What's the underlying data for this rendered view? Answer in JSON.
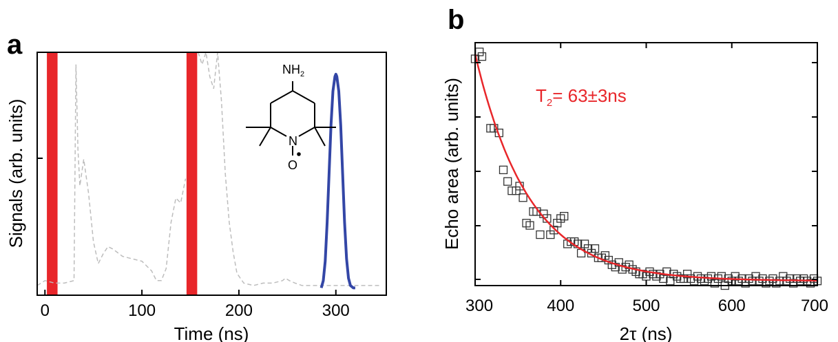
{
  "panels": {
    "a": {
      "letter": "a"
    },
    "b": {
      "letter": "b"
    }
  },
  "colors": {
    "pulse": "#e8262a",
    "echo": "#3346a6",
    "trace": "#bdbdbd",
    "fit": "#e8262a",
    "marker": "#333333"
  },
  "chart_data": [
    {
      "panel": "a",
      "type": "line",
      "title": "",
      "xlabel": "Time (ns)",
      "ylabel": "Signals (arb. units)",
      "xlim": [
        -8,
        352
      ],
      "ylim": [
        0,
        1
      ],
      "xticks": [
        0,
        100,
        200,
        300
      ],
      "xtick_labels": [
        "0",
        "100",
        "200",
        "300"
      ],
      "pulses": [
        {
          "start": 2,
          "end": 13
        },
        {
          "start": 146,
          "end": 157
        }
      ],
      "series": [
        {
          "style": "dashed-trace",
          "x": [
            -8,
            0,
            10,
            20,
            30,
            32,
            34,
            36,
            40,
            45,
            50,
            55,
            60,
            65,
            70,
            80,
            90,
            100,
            105,
            110,
            115,
            120,
            125,
            130,
            135,
            140,
            145
          ],
          "y": [
            0.04,
            0.06,
            0.05,
            0.05,
            0.06,
            0.95,
            0.6,
            0.45,
            0.56,
            0.42,
            0.22,
            0.13,
            0.17,
            0.2,
            0.19,
            0.16,
            0.15,
            0.14,
            0.12,
            0.1,
            0.06,
            0.06,
            0.11,
            0.3,
            0.4,
            0.38,
            0.48
          ]
        },
        {
          "style": "dashed-trace",
          "x": [
            158,
            162,
            166,
            170,
            174,
            178,
            182,
            186,
            190,
            194,
            198,
            205,
            215,
            225,
            235,
            245,
            248,
            252,
            258,
            265,
            275,
            285,
            295,
            305,
            315,
            330,
            345
          ],
          "y": [
            1.0,
            0.95,
            1.0,
            0.9,
            0.85,
            1.0,
            0.8,
            0.5,
            0.3,
            0.18,
            0.09,
            0.05,
            0.04,
            0.05,
            0.05,
            0.06,
            0.07,
            0.06,
            0.05,
            0.04,
            0.04,
            0.04,
            0.04,
            0.04,
            0.04,
            0.04,
            0.04
          ]
        },
        {
          "style": "echo",
          "x": [
            285,
            287,
            289,
            291,
            293,
            295,
            297,
            299,
            300,
            301,
            303,
            305,
            307,
            309,
            311,
            313,
            315,
            318,
            320
          ],
          "y": [
            0.03,
            0.06,
            0.14,
            0.3,
            0.5,
            0.7,
            0.84,
            0.9,
            0.91,
            0.9,
            0.84,
            0.7,
            0.5,
            0.3,
            0.15,
            0.07,
            0.04,
            0.03,
            0.03
          ]
        }
      ],
      "inset": {
        "type": "molecule",
        "labels": {
          "amine": "NH",
          "amine_sub": "2",
          "nitrogen": "N",
          "oxygen": "O"
        }
      }
    },
    {
      "panel": "b",
      "type": "scatter",
      "title": "",
      "xlabel": "2τ (ns)",
      "ylabel": "Echo area (arb. units)",
      "xlim": [
        300,
        700
      ],
      "ylim": [
        0,
        1.05
      ],
      "xticks": [
        300,
        400,
        500,
        600,
        700
      ],
      "xtick_labels": [
        "300",
        "400",
        "500",
        "600",
        "700"
      ],
      "fit": {
        "model": "exponential decay",
        "label_main": "T",
        "label_sub": "2",
        "label_value": "= 63±3ns",
        "T2": 63,
        "amplitude": 0.98,
        "offset": 0.02,
        "x0": 300
      },
      "points": {
        "x": [
          300,
          305,
          308,
          318,
          322,
          328,
          333,
          338,
          343,
          348,
          352,
          356,
          360,
          364,
          368,
          372,
          376,
          380,
          384,
          388,
          392,
          396,
          400,
          404,
          408,
          412,
          416,
          420,
          424,
          428,
          432,
          436,
          440,
          444,
          448,
          452,
          456,
          460,
          464,
          468,
          472,
          476,
          480,
          484,
          488,
          492,
          496,
          500,
          504,
          508,
          512,
          516,
          520,
          524,
          528,
          532,
          536,
          540,
          544,
          548,
          552,
          556,
          560,
          564,
          568,
          572,
          576,
          580,
          584,
          588,
          592,
          596,
          600,
          604,
          608,
          612,
          616,
          620,
          624,
          628,
          632,
          636,
          640,
          644,
          648,
          652,
          656,
          660,
          664,
          668,
          672,
          676,
          680,
          684,
          688,
          692,
          696,
          700
        ],
        "y": [
          0.98,
          1.01,
          0.99,
          0.68,
          0.68,
          0.66,
          0.5,
          0.45,
          0.41,
          0.41,
          0.43,
          0.38,
          0.27,
          0.26,
          0.32,
          0.32,
          0.22,
          0.31,
          0.29,
          0.22,
          0.24,
          0.27,
          0.29,
          0.3,
          0.18,
          0.19,
          0.19,
          0.18,
          0.14,
          0.18,
          0.16,
          0.14,
          0.16,
          0.12,
          0.12,
          0.13,
          0.11,
          0.09,
          0.08,
          0.1,
          0.07,
          0.08,
          0.09,
          0.07,
          0.06,
          0.05,
          0.05,
          0.04,
          0.06,
          0.05,
          0.04,
          0.05,
          0.03,
          0.06,
          0.02,
          0.05,
          0.04,
          0.03,
          0.03,
          0.05,
          0.03,
          0.02,
          0.04,
          0.03,
          0.02,
          0.03,
          0.04,
          0.01,
          0.03,
          0.04,
          0.0,
          0.03,
          0.02,
          0.04,
          0.02,
          0.03,
          0.01,
          0.03,
          0.02,
          0.04,
          0.02,
          0.03,
          0.01,
          0.02,
          0.03,
          0.01,
          0.02,
          0.04,
          0.02,
          0.03,
          0.01,
          0.03,
          0.02,
          0.03,
          0.02,
          0.01,
          0.03,
          0.02
        ]
      }
    }
  ]
}
